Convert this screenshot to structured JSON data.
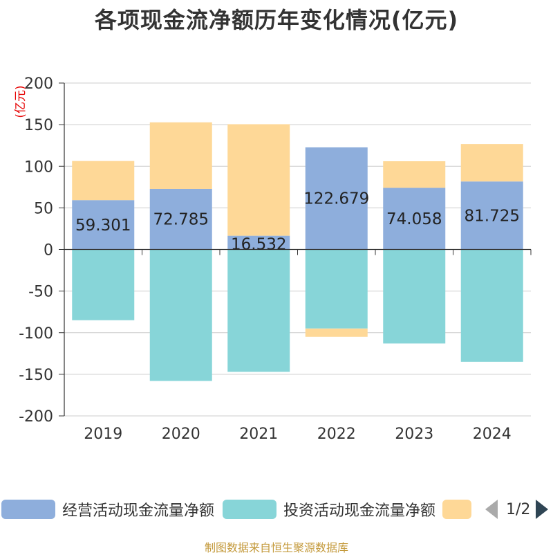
{
  "title": "各项现金流净额历年变化情况(亿元)",
  "source_note": "制图数据来自恒生聚源数据库",
  "pager_text": "1/2",
  "legend": [
    {
      "label": "经营活动现金流量净额",
      "color": "#8eaedc"
    },
    {
      "label": "投资活动现金流量净额",
      "color": "#87d5d8"
    },
    {
      "label": "",
      "color": "#fed897"
    }
  ],
  "chart_data": {
    "type": "bar",
    "stacked": true,
    "ylabel": "(亿元)",
    "ylim": [
      -200,
      200
    ],
    "yticks": [
      200,
      150,
      100,
      50,
      0,
      -50,
      -100,
      -150,
      -200
    ],
    "categories": [
      "2019",
      "2020",
      "2021",
      "2022",
      "2023",
      "2024"
    ],
    "grid": true,
    "legend_position": "bottom",
    "series": [
      {
        "name": "经营活动现金流量净额",
        "color": "#8eaedc",
        "values": [
          59.301,
          72.785,
          16.532,
          122.679,
          74.058,
          81.725
        ],
        "data_labels": [
          "59.301",
          "72.785",
          "16.532",
          "122.679",
          "74.058",
          "81.725"
        ]
      },
      {
        "name": "投资活动现金流量净额",
        "color": "#87d5d8",
        "values": [
          -85,
          -158,
          -147,
          -95,
          -113,
          -135
        ]
      },
      {
        "color": "#fed897",
        "values": [
          47,
          80,
          134,
          -10,
          32,
          45
        ]
      }
    ]
  }
}
